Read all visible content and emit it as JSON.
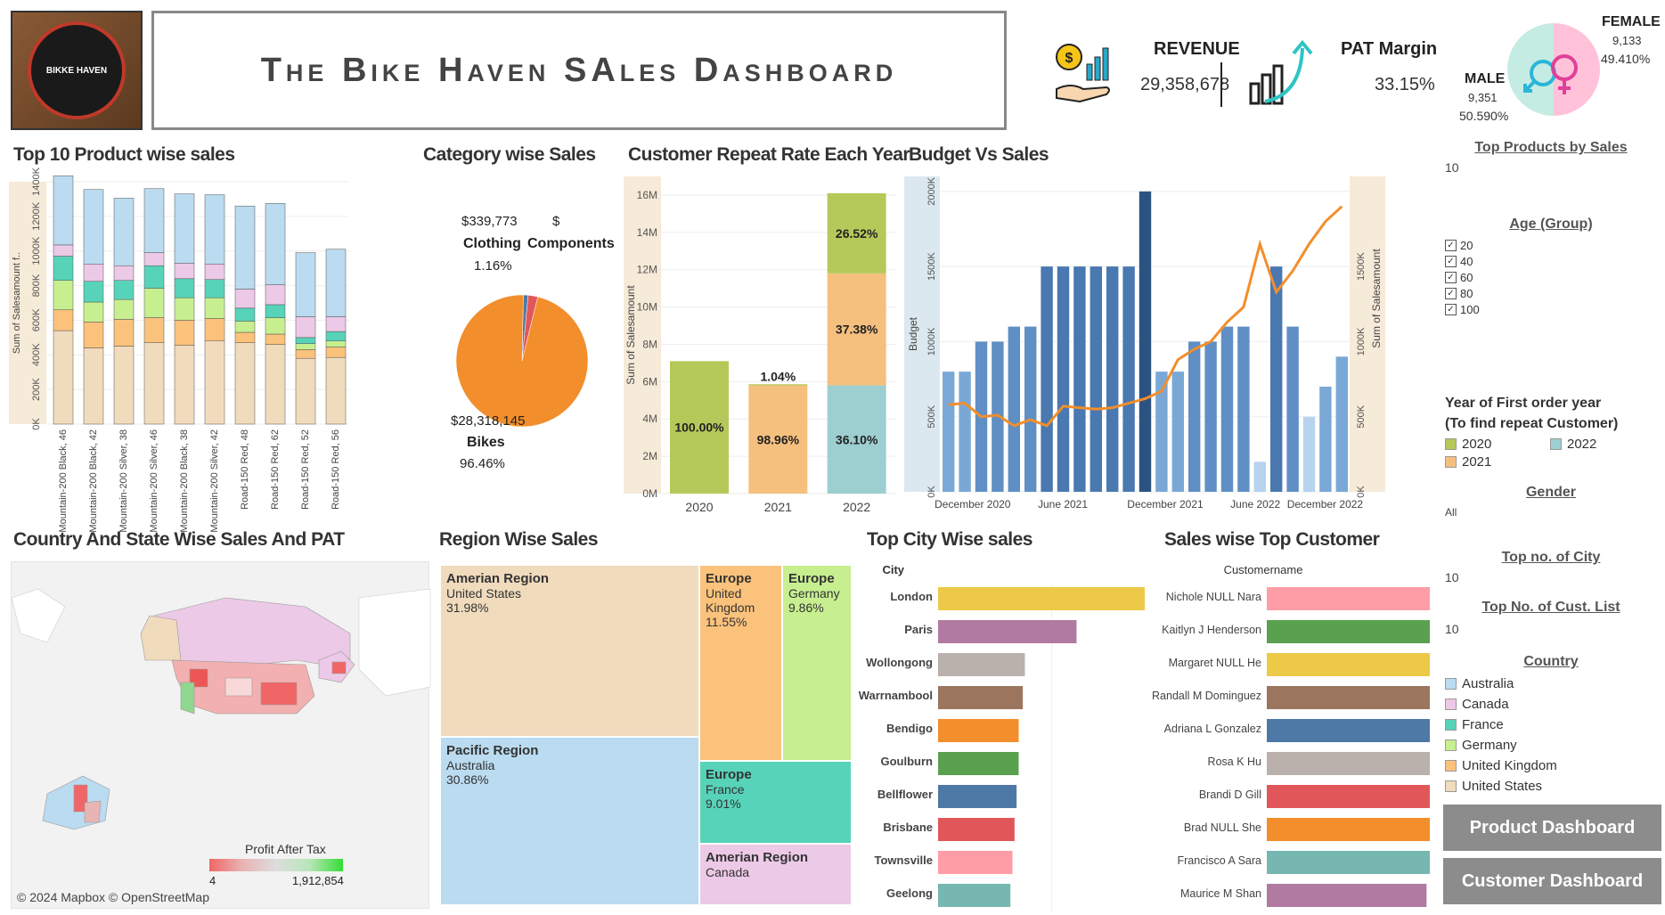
{
  "header": {
    "title": "The Bike Haven SAles Dashboard",
    "logo_text": "BIKKE HAVEN"
  },
  "kpis": {
    "revenue_label": "REVENUE",
    "revenue_value": "29,358,678",
    "pat_label": "PAT Margin",
    "pat_value": "33.15%",
    "female_label": "FEMALE",
    "female_count": "9,133",
    "female_pct": "49.410%",
    "male_label": "MALE",
    "male_count": "9,351",
    "male_pct": "50.590%"
  },
  "sections": {
    "top10": "Top 10 Product wise sales",
    "category": "Category wise Sales",
    "repeat": "Customer Repeat Rate Each Year",
    "budget": "Budget Vs Sales",
    "country": "Country And State Wise Sales And PAT",
    "region": "Region Wise Sales",
    "city": "Top City Wise sales",
    "customer": "Sales wise Top Customer"
  },
  "top10_chart": {
    "ylabel": "Sum of Salesamount f..",
    "yticks": [
      "0K",
      "200K",
      "400K",
      "600K",
      "800K",
      "1000K",
      "1200K",
      "1400K"
    ],
    "categories": [
      "Mountain-200 Black, 46",
      "Mountain-200 Black, 42",
      "Mountain-200 Silver, 38",
      "Mountain-200 Silver, 46",
      "Mountain-200 Black, 38",
      "Mountain-200 Silver, 42",
      "Road-150 Red, 48",
      "Road-150 Red, 62",
      "Road-150 Red, 52",
      "Road-150 Red, 56"
    ],
    "tick_labels": [
      "Mountain-200 Black, 46",
      "Mountain-200 Black, 42",
      "Mountain-200 Silver, 38",
      "Mountain-200 Silver, 46",
      "Mountain-200 Black, 38",
      "Mountain-200 Silver, 42",
      "Road-150 Red, 48",
      "Road-150 Red, 62",
      "Road-150 Red, 52",
      "Road-150 Red, 56"
    ],
    "stack_order": [
      "United States",
      "United Kingdom",
      "Germany",
      "France",
      "Canada",
      "Australia"
    ],
    "series_values": [
      [
        540,
        440,
        450,
        470,
        455,
        480,
        470,
        460,
        380,
        385
      ],
      [
        120,
        150,
        155,
        145,
        145,
        130,
        60,
        60,
        50,
        60
      ],
      [
        170,
        115,
        115,
        170,
        130,
        120,
        65,
        95,
        35,
        35
      ],
      [
        140,
        120,
        110,
        130,
        110,
        105,
        75,
        75,
        35,
        55
      ],
      [
        65,
        100,
        85,
        75,
        90,
        90,
        110,
        115,
        120,
        85
      ],
      [
        400,
        430,
        390,
        370,
        400,
        400,
        480,
        470,
        370,
        390
      ]
    ],
    "ymax": 1400
  },
  "category_chart": {
    "type": "pie",
    "slices": [
      {
        "name": "Bikes",
        "amount": "$28,318,145",
        "pct": "96.46%",
        "value": 96.46,
        "color": "#f28e2b"
      },
      {
        "name": "Clothing",
        "amount": "$339,773",
        "pct": "1.16%",
        "value": 1.16,
        "color": "#4e79a7"
      },
      {
        "name": "Components",
        "amount": "$",
        "pct": "",
        "value": 2.38,
        "color": "#e15759"
      }
    ]
  },
  "repeat_chart": {
    "ylabel": "Sum of Salesamount",
    "yticks": [
      "0M",
      "2M",
      "4M",
      "6M",
      "8M",
      "10M",
      "12M",
      "14M",
      "16M"
    ],
    "ymax": 17,
    "years": [
      "2020",
      "2021",
      "2022"
    ],
    "stacks": [
      [
        {
          "cohort": "2020",
          "value": 7.1,
          "label": "100.00%"
        }
      ],
      [
        {
          "cohort": "2021",
          "value": 5.8,
          "label": "98.96%"
        },
        {
          "cohort": "2020",
          "value": 0.06,
          "label": "1.04%"
        }
      ],
      [
        {
          "cohort": "2022",
          "value": 5.8,
          "label": "36.10%"
        },
        {
          "cohort": "2021",
          "value": 6.0,
          "label": "37.38%"
        },
        {
          "cohort": "2020",
          "value": 4.3,
          "label": "26.52%"
        }
      ]
    ]
  },
  "budget_chart": {
    "ylabel_left": "Budget",
    "ylabel_right": "Sum of Salesamount",
    "yticks_left": [
      "0K",
      "500K",
      "1000K",
      "1500K",
      "2000K"
    ],
    "yticks_right": [
      "0K",
      "500K",
      "1000K",
      "1500K"
    ],
    "xticks": [
      "December 2020",
      "June 2021",
      "December 2021",
      "June 2022",
      "December 2022"
    ],
    "budget_values": [
      800,
      800,
      1000,
      1000,
      1100,
      1100,
      1500,
      1500,
      1500,
      1500,
      1500,
      1500,
      2000,
      800,
      800,
      1000,
      1000,
      1100,
      1100,
      200,
      1500,
      1100,
      500,
      700,
      900
    ],
    "sales_values": [
      580,
      590,
      500,
      510,
      440,
      480,
      440,
      570,
      560,
      550,
      560,
      590,
      620,
      670,
      880,
      950,
      1000,
      1130,
      1230,
      1650,
      1330,
      1470,
      1650,
      1800,
      1900
    ]
  },
  "map": {
    "legend_title": "Profit After Tax",
    "legend_min": "4",
    "legend_max": "1,912,854",
    "attribution": "© 2024 Mapbox © OpenStreetMap"
  },
  "region_treemap": [
    {
      "region": "Amerian Region",
      "country": "United States",
      "pct": "31.98%",
      "color": "#f1dbbd"
    },
    {
      "region": "Europe",
      "country": "United Kingdom",
      "pct": "11.55%",
      "color": "#fbc27c"
    },
    {
      "region": "Europe",
      "country": "Germany",
      "pct": "9.86%",
      "color": "#c7ef90"
    },
    {
      "region": "Pacific Region",
      "country": "Australia",
      "pct": "30.86%",
      "color": "#badbf0"
    },
    {
      "region": "Europe",
      "country": "France",
      "pct": "9.01%",
      "color": "#57d3b9"
    },
    {
      "region": "Amerian Region",
      "country": "Canada",
      "pct": "",
      "color": "#ecc9e6"
    }
  ],
  "city_chart": {
    "header": "City",
    "cities": [
      "London",
      "Paris",
      "Wollongong",
      "Warrnambool",
      "Bendigo",
      "Goulburn",
      "Bellflower",
      "Brisbane",
      "Townsville",
      "Geelong"
    ],
    "values": [
      100,
      67,
      42,
      41,
      39,
      39,
      38,
      37,
      36,
      35
    ],
    "colors": [
      "#edc948",
      "#b07aa1",
      "#bab0ac",
      "#9c755f",
      "#f28e2b",
      "#59a14f",
      "#4e79a7",
      "#e15759",
      "#ff9da7",
      "#76b7b2"
    ]
  },
  "customer_chart": {
    "header": "Customername",
    "names": [
      "Nichole NULL Nara",
      "Kaitlyn J Henderson",
      "Margaret NULL He",
      "Randall M Dominguez",
      "Adriana L Gonzalez",
      "Rosa K Hu",
      "Brandi D Gill",
      "Brad NULL She",
      "Francisco A Sara",
      "Maurice M Shan"
    ],
    "values": [
      100,
      100,
      100,
      100,
      100,
      100,
      100,
      100,
      100,
      98
    ],
    "colors": [
      "#ff9da7",
      "#59a14f",
      "#edc948",
      "#9c755f",
      "#4e79a7",
      "#bab0ac",
      "#e15759",
      "#f28e2b",
      "#76b7b2",
      "#b07aa1"
    ]
  },
  "filters": {
    "top_products_title": "Top Products by Sales",
    "top_products_value": "10",
    "age_title": "Age (Group)",
    "age_options": [
      "20",
      "40",
      "60",
      "80",
      "100"
    ],
    "first_order_title_1": "Year of First order year",
    "first_order_title_2": "(To find repeat Customer)",
    "cohort_legend": [
      {
        "label": "2020",
        "color": "#b5c95a"
      },
      {
        "label": "2022",
        "color": "#9dcfd1"
      },
      {
        "label": "2021",
        "color": "#f5c07e"
      }
    ],
    "gender_title": "Gender",
    "gender_value": "All",
    "top_city_title": "Top no. of City",
    "top_city_value": "10",
    "top_cust_title": "Top No. of Cust. List",
    "top_cust_value": "10",
    "country_title": "Country",
    "countries": [
      {
        "label": "Australia",
        "color": "#badbf0"
      },
      {
        "label": "Canada",
        "color": "#ecc9e6"
      },
      {
        "label": "France",
        "color": "#57d3b9"
      },
      {
        "label": "Germany",
        "color": "#c7ef90"
      },
      {
        "label": "United Kingdom",
        "color": "#fbc27c"
      },
      {
        "label": "United States",
        "color": "#f1dbbd"
      }
    ],
    "product_button": "Product Dashboard",
    "customer_button": "Customer Dashboard"
  }
}
